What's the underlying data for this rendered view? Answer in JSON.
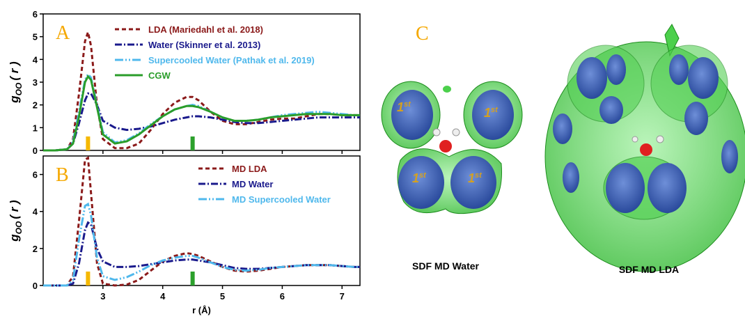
{
  "chart_data": [
    {
      "type": "line",
      "panel_label": "A",
      "ylabel": "g",
      "ylabel_sub": "OO",
      "ylabel_tail": "( r )",
      "x": [
        2.0,
        2.2,
        2.4,
        2.5,
        2.6,
        2.7,
        2.75,
        2.8,
        2.9,
        3.0,
        3.2,
        3.4,
        3.6,
        3.8,
        4.0,
        4.2,
        4.4,
        4.5,
        4.6,
        4.8,
        5.0,
        5.2,
        5.4,
        5.6,
        5.8,
        6.0,
        6.2,
        6.4,
        6.6,
        6.8,
        7.0,
        7.2,
        7.3
      ],
      "series": [
        {
          "name": "LDA (Mariedahl et al. 2018)",
          "color": "#8b1a1a",
          "dash": "6,4",
          "values": [
            0,
            0,
            0.05,
            0.5,
            2.5,
            4.8,
            5.2,
            4.6,
            2.0,
            0.5,
            0.1,
            0.1,
            0.3,
            0.9,
            1.6,
            2.1,
            2.35,
            2.35,
            2.2,
            1.7,
            1.3,
            1.15,
            1.15,
            1.25,
            1.35,
            1.4,
            1.4,
            1.5,
            1.6,
            1.6,
            1.55,
            1.55,
            1.55
          ]
        },
        {
          "name": "Water (Skinner et al. 2013)",
          "color": "#1a1a8c",
          "dash": "10,3,2,3",
          "values": [
            0,
            0,
            0.05,
            0.3,
            1.2,
            2.2,
            2.5,
            2.5,
            2.0,
            1.3,
            1.0,
            0.9,
            0.95,
            1.05,
            1.2,
            1.35,
            1.45,
            1.5,
            1.5,
            1.45,
            1.35,
            1.25,
            1.2,
            1.2,
            1.25,
            1.3,
            1.35,
            1.4,
            1.45,
            1.45,
            1.45,
            1.45,
            1.45
          ]
        },
        {
          "name": "Supercooled Water (Pathak et al. 2019)",
          "color": "#4fb8ec",
          "dash": "12,3,2,3,2,3",
          "values": [
            0,
            0,
            0.05,
            0.4,
            1.7,
            3.1,
            3.35,
            3.2,
            2.0,
            0.8,
            0.35,
            0.45,
            0.75,
            1.15,
            1.5,
            1.8,
            1.95,
            2.0,
            1.95,
            1.7,
            1.45,
            1.3,
            1.3,
            1.35,
            1.45,
            1.55,
            1.6,
            1.65,
            1.7,
            1.65,
            1.6,
            1.55,
            1.55
          ]
        },
        {
          "name": "CGW",
          "color": "#2a9d2a",
          "dash": "none",
          "values": [
            0,
            0,
            0.05,
            0.3,
            1.5,
            3.0,
            3.25,
            3.1,
            1.9,
            0.7,
            0.3,
            0.4,
            0.7,
            1.1,
            1.5,
            1.8,
            1.95,
            1.95,
            1.9,
            1.7,
            1.45,
            1.3,
            1.3,
            1.35,
            1.45,
            1.5,
            1.55,
            1.6,
            1.6,
            1.6,
            1.55,
            1.55,
            1.55
          ]
        }
      ],
      "markers": [
        {
          "x": 2.75,
          "color": "#f5b800"
        },
        {
          "x": 4.5,
          "color": "#2ca02c"
        }
      ],
      "xlim": [
        2.0,
        7.3
      ],
      "xticks": [
        3,
        4,
        5,
        6,
        7
      ],
      "xtick_labels": false,
      "ylim": [
        0,
        6
      ],
      "yticks": [
        0,
        1,
        2,
        3,
        4,
        5,
        6
      ]
    },
    {
      "type": "line",
      "panel_label": "B",
      "ylabel": "g",
      "ylabel_sub": "OO",
      "ylabel_tail": "( r )",
      "xlabel": "r (Å)",
      "x": [
        2.0,
        2.2,
        2.4,
        2.5,
        2.6,
        2.7,
        2.75,
        2.8,
        2.9,
        3.0,
        3.2,
        3.4,
        3.6,
        3.8,
        4.0,
        4.2,
        4.4,
        4.5,
        4.6,
        4.8,
        5.0,
        5.2,
        5.4,
        5.6,
        5.8,
        6.0,
        6.2,
        6.4,
        6.6,
        6.8,
        7.0,
        7.2,
        7.3
      ],
      "series": [
        {
          "name": "MD LDA",
          "color": "#8b1a1a",
          "dash": "6,4",
          "values": [
            0,
            0,
            0,
            0.5,
            3.5,
            6.8,
            6.9,
            5.0,
            1.2,
            0.1,
            0,
            0.05,
            0.3,
            0.8,
            1.3,
            1.6,
            1.75,
            1.7,
            1.6,
            1.3,
            1.0,
            0.8,
            0.75,
            0.8,
            0.9,
            1.0,
            1.05,
            1.1,
            1.1,
            1.1,
            1.05,
            1.0,
            1.0
          ]
        },
        {
          "name": "MD Water",
          "color": "#1a1a8c",
          "dash": "10,3,2,3",
          "values": [
            0,
            0,
            0,
            0.1,
            1.2,
            3.0,
            3.4,
            3.3,
            2.0,
            1.3,
            1.0,
            1.0,
            1.05,
            1.15,
            1.25,
            1.35,
            1.4,
            1.4,
            1.35,
            1.25,
            1.1,
            0.95,
            0.9,
            0.9,
            0.95,
            1.0,
            1.05,
            1.1,
            1.1,
            1.1,
            1.05,
            1.0,
            1.0
          ]
        },
        {
          "name": "MD Supercooled Water",
          "color": "#4fb8ec",
          "dash": "12,3,2,3,2,3",
          "values": [
            0,
            0,
            0,
            0.3,
            2.5,
            4.3,
            4.4,
            3.8,
            1.5,
            0.5,
            0.3,
            0.45,
            0.75,
            1.1,
            1.35,
            1.5,
            1.6,
            1.6,
            1.5,
            1.25,
            1.0,
            0.85,
            0.8,
            0.85,
            0.95,
            1.0,
            1.05,
            1.1,
            1.1,
            1.1,
            1.05,
            1.0,
            1.0
          ]
        }
      ],
      "markers": [
        {
          "x": 2.75,
          "color": "#f5b800"
        },
        {
          "x": 4.5,
          "color": "#2ca02c"
        }
      ],
      "xlim": [
        2.0,
        7.3
      ],
      "xticks": [
        3,
        4,
        5,
        6,
        7
      ],
      "xtick_labels": true,
      "ylim": [
        0,
        7
      ],
      "yticks": [
        0,
        2,
        4,
        6
      ]
    }
  ],
  "panel_c": {
    "label": "C",
    "shell_main": "1",
    "shell_sup": "st",
    "captions": [
      "SDF MD Water",
      "SDF MD LDA"
    ]
  }
}
